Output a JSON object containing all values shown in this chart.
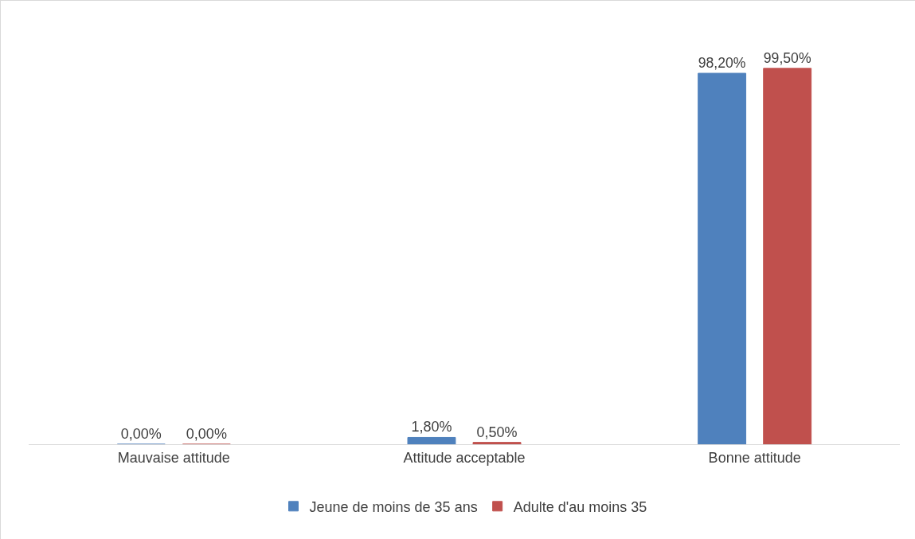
{
  "chart_data": {
    "type": "bar",
    "categories": [
      "Mauvaise attitude",
      "Attitude acceptable",
      "Bonne attitude"
    ],
    "series": [
      {
        "name": "Jeune de moins de 35 ans",
        "color": "#4f81bd",
        "values": [
          0,
          1.8,
          98.2
        ],
        "value_labels": [
          "0,00%",
          "1,80%",
          "98,20%"
        ]
      },
      {
        "name": "Adulte d'au moins 35",
        "color": "#c0504d",
        "values": [
          0,
          0.5,
          99.5
        ],
        "value_labels": [
          "0,00%",
          "0,50%",
          "99,50%"
        ]
      }
    ],
    "legend": "bottom",
    "grid": false
  }
}
